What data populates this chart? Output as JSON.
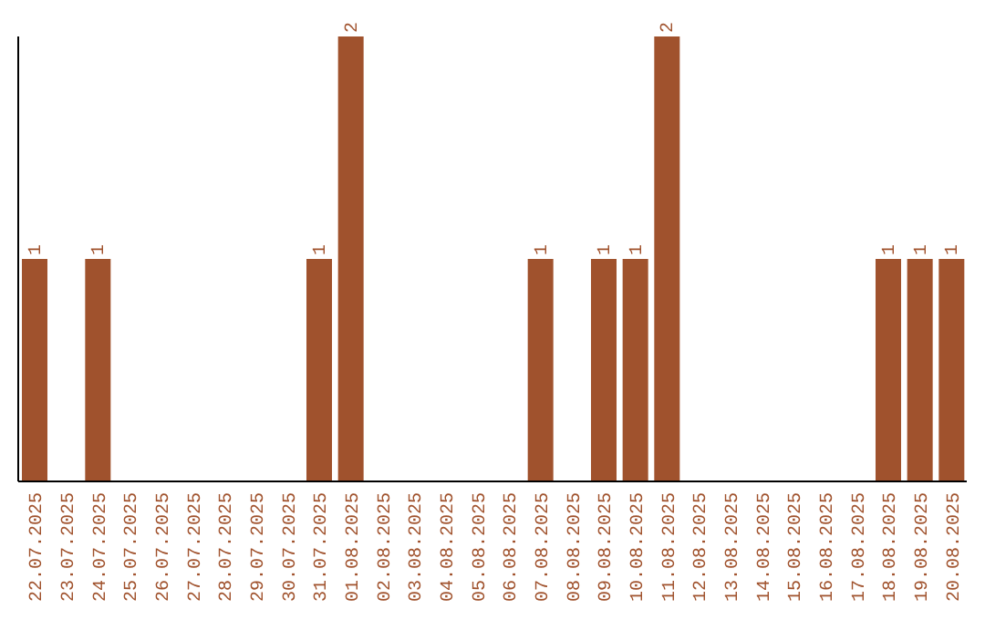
{
  "chart_data": {
    "type": "bar",
    "categories": [
      "22.07.2025",
      "23.07.2025",
      "24.07.2025",
      "25.07.2025",
      "26.07.2025",
      "27.07.2025",
      "28.07.2025",
      "29.07.2025",
      "30.07.2025",
      "31.07.2025",
      "01.08.2025",
      "02.08.2025",
      "03.08.2025",
      "04.08.2025",
      "05.08.2025",
      "06.08.2025",
      "07.08.2025",
      "08.08.2025",
      "09.08.2025",
      "10.08.2025",
      "11.08.2025",
      "12.08.2025",
      "13.08.2025",
      "14.08.2025",
      "15.08.2025",
      "16.08.2025",
      "17.08.2025",
      "18.08.2025",
      "19.08.2025",
      "20.08.2025"
    ],
    "values": [
      1,
      0,
      1,
      0,
      0,
      0,
      0,
      0,
      0,
      1,
      2,
      0,
      0,
      0,
      0,
      0,
      1,
      0,
      1,
      1,
      2,
      0,
      0,
      0,
      0,
      0,
      0,
      1,
      1,
      1
    ],
    "value_labels": [
      "1",
      null,
      "1",
      null,
      null,
      null,
      null,
      null,
      null,
      "1",
      "2",
      null,
      null,
      null,
      null,
      null,
      "1",
      null,
      "1",
      "1",
      "2",
      null,
      null,
      null,
      null,
      null,
      null,
      "1",
      "1",
      "1"
    ],
    "color": "#a0522d",
    "grid": false,
    "legend": false
  }
}
